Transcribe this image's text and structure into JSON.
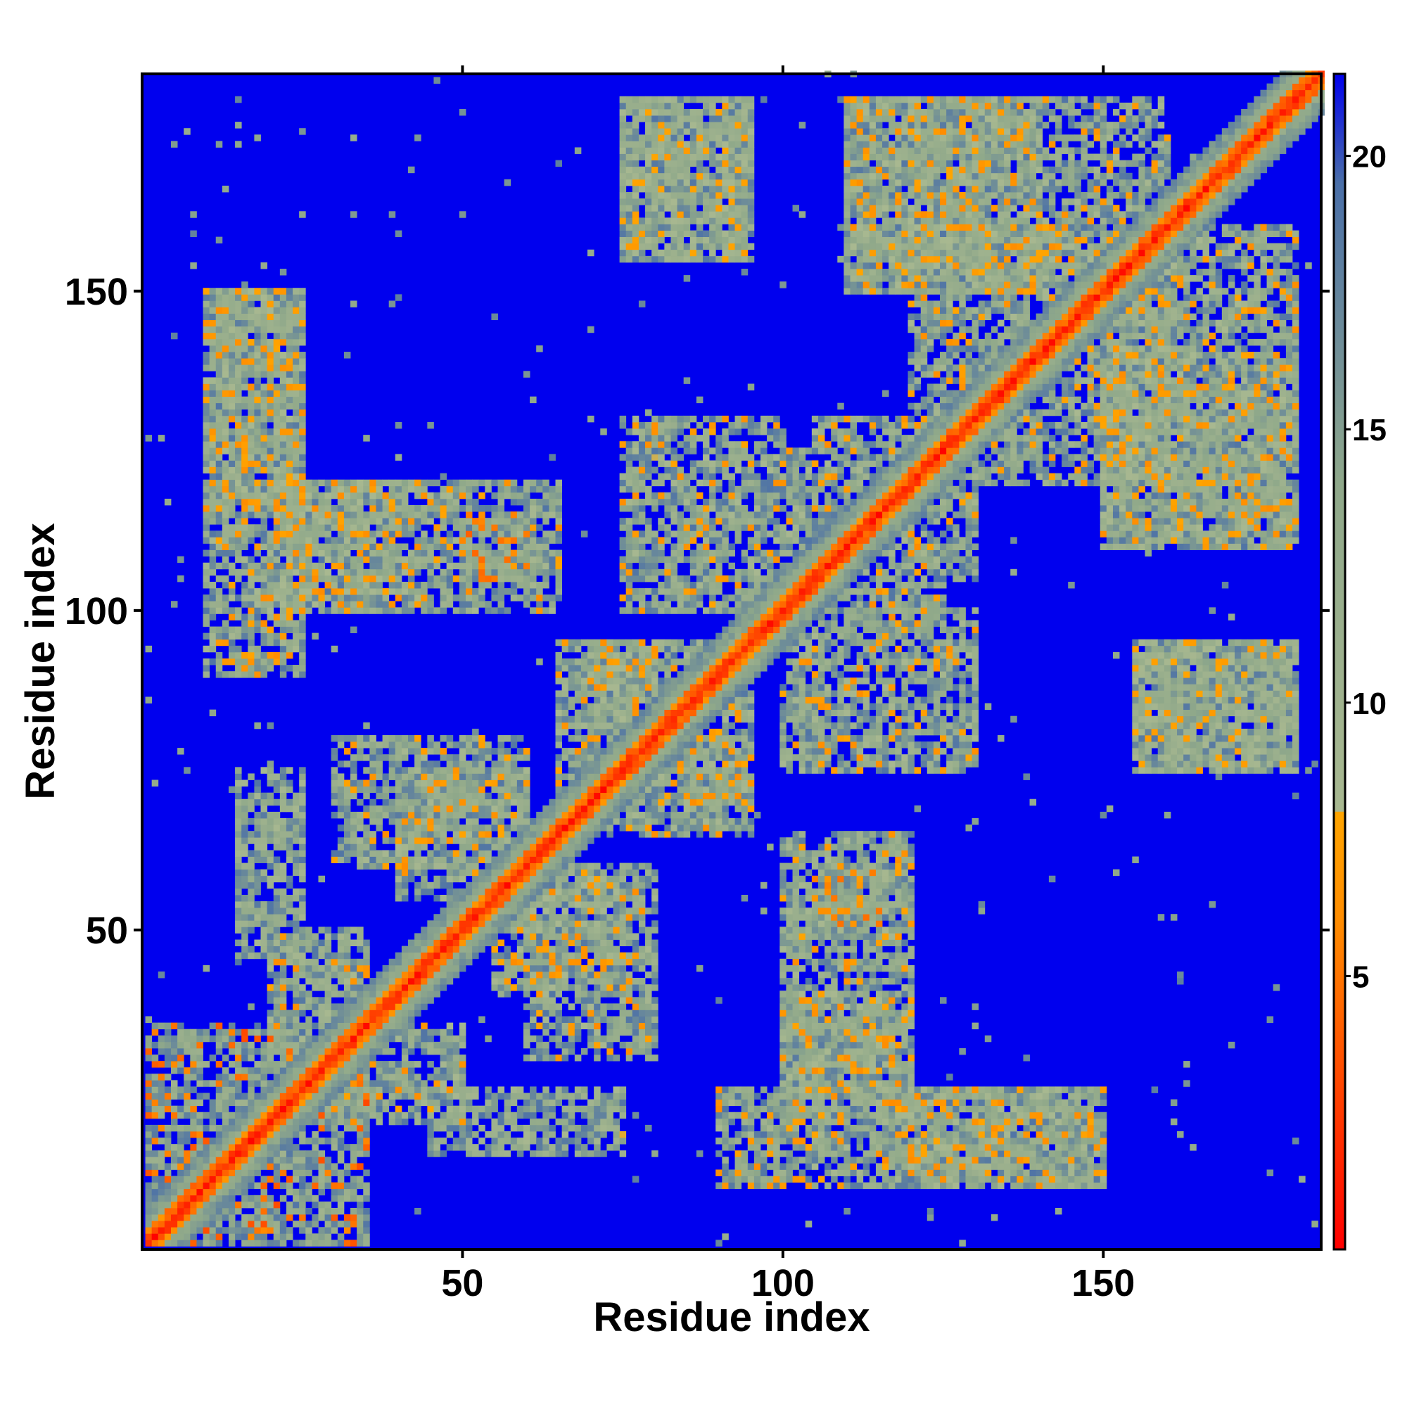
{
  "chart_data": {
    "type": "heatmap",
    "title": "",
    "xlabel": "Residue index",
    "ylabel": "Residue index",
    "xlim": [
      1,
      184
    ],
    "ylim": [
      1,
      184
    ],
    "x_ticks": [
      50,
      100,
      150
    ],
    "y_ticks": [
      50,
      100,
      150
    ],
    "colorbar": {
      "range": [
        0,
        21.5
      ],
      "ticks": [
        5,
        10,
        15,
        20
      ],
      "stops": [
        {
          "value": 0,
          "color": "#ff0000"
        },
        {
          "value": 6,
          "color": "#ff8c00"
        },
        {
          "value": 8,
          "color": "#ffa500"
        },
        {
          "value": 8.01,
          "color": "#a8b890"
        },
        {
          "value": 14,
          "color": "#8fa88a"
        },
        {
          "value": 19.5,
          "color": "#4a6fa8"
        },
        {
          "value": 21.5,
          "color": "#0000ee"
        }
      ]
    },
    "matrix_description_values": {
      "diagonal_value": 0,
      "background_value": 21.5,
      "contact_clusters": [
        {
          "x": [
            1,
            35
          ],
          "y": [
            1,
            35
          ],
          "min": 3
        },
        {
          "x": [
            10,
            25
          ],
          "y": [
            90,
            150
          ],
          "min": 6
        },
        {
          "x": [
            25,
            65
          ],
          "y": [
            100,
            120
          ],
          "min": 6
        },
        {
          "x": [
            30,
            60
          ],
          "y": [
            60,
            80
          ],
          "min": 6
        },
        {
          "x": [
            55,
            75
          ],
          "y": [
            40,
            60
          ],
          "min": 6
        },
        {
          "x": [
            65,
            80
          ],
          "y": [
            70,
            95
          ],
          "min": 6
        },
        {
          "x": [
            75,
            100
          ],
          "y": [
            100,
            130
          ],
          "min": 6
        },
        {
          "x": [
            75,
            95
          ],
          "y": [
            155,
            180
          ],
          "min": 7
        },
        {
          "x": [
            105,
            125
          ],
          "y": [
            100,
            130
          ],
          "min": 6
        },
        {
          "x": [
            100,
            120
          ],
          "y": [
            20,
            40
          ],
          "min": 6
        },
        {
          "x": [
            105,
            115
          ],
          "y": [
            50,
            60
          ],
          "min": 4
        },
        {
          "x": [
            110,
            140
          ],
          "y": [
            150,
            180
          ],
          "min": 6
        },
        {
          "x": [
            120,
            150
          ],
          "y": [
            130,
            160
          ],
          "min": 6
        },
        {
          "x": [
            150,
            180
          ],
          "y": [
            110,
            160
          ],
          "min": 6
        },
        {
          "x": [
            155,
            180
          ],
          "y": [
            75,
            95
          ],
          "min": 7
        },
        {
          "x": [
            30,
            50
          ],
          "y": [
            20,
            35
          ],
          "min": 6
        },
        {
          "x": [
            45,
            75
          ],
          "y": [
            15,
            25
          ],
          "min": 8
        },
        {
          "x": [
            115,
            150
          ],
          "y": [
            10,
            25
          ],
          "min": 6
        },
        {
          "x": [
            70,
            90
          ],
          "y": [
            80,
            95
          ],
          "min": 6
        }
      ]
    }
  }
}
